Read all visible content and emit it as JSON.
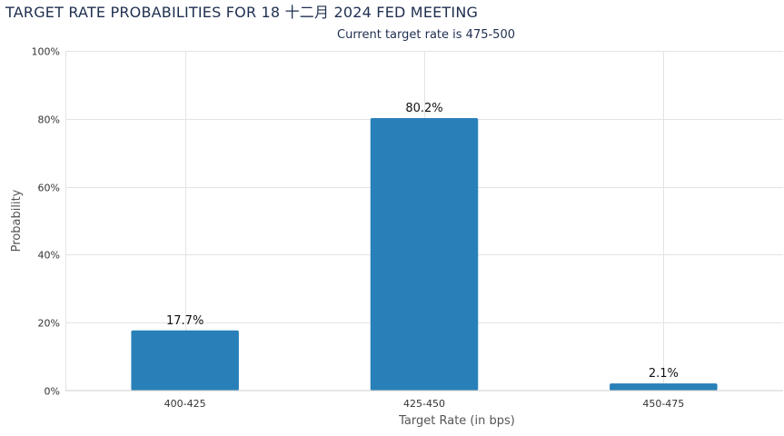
{
  "chart_data": {
    "type": "bar",
    "title": "TARGET RATE PROBABILITIES FOR 18 十二月 2024 FED MEETING",
    "subtitle": "Current target rate is 475-500",
    "categories": [
      "400-425",
      "425-450",
      "450-475"
    ],
    "values": [
      17.7,
      80.2,
      2.1
    ],
    "data_labels": [
      "17.7%",
      "80.2%",
      "2.1%"
    ],
    "xlabel": "Target Rate (in bps)",
    "ylabel": "Probability",
    "ylim": [
      0,
      100
    ],
    "yticks": [
      0,
      20,
      40,
      60,
      80,
      100
    ],
    "ytick_labels": [
      "0%",
      "20%",
      "40%",
      "60%",
      "80%",
      "100%"
    ],
    "grid": true,
    "legend": "none",
    "bar_color": "#2980b9"
  }
}
